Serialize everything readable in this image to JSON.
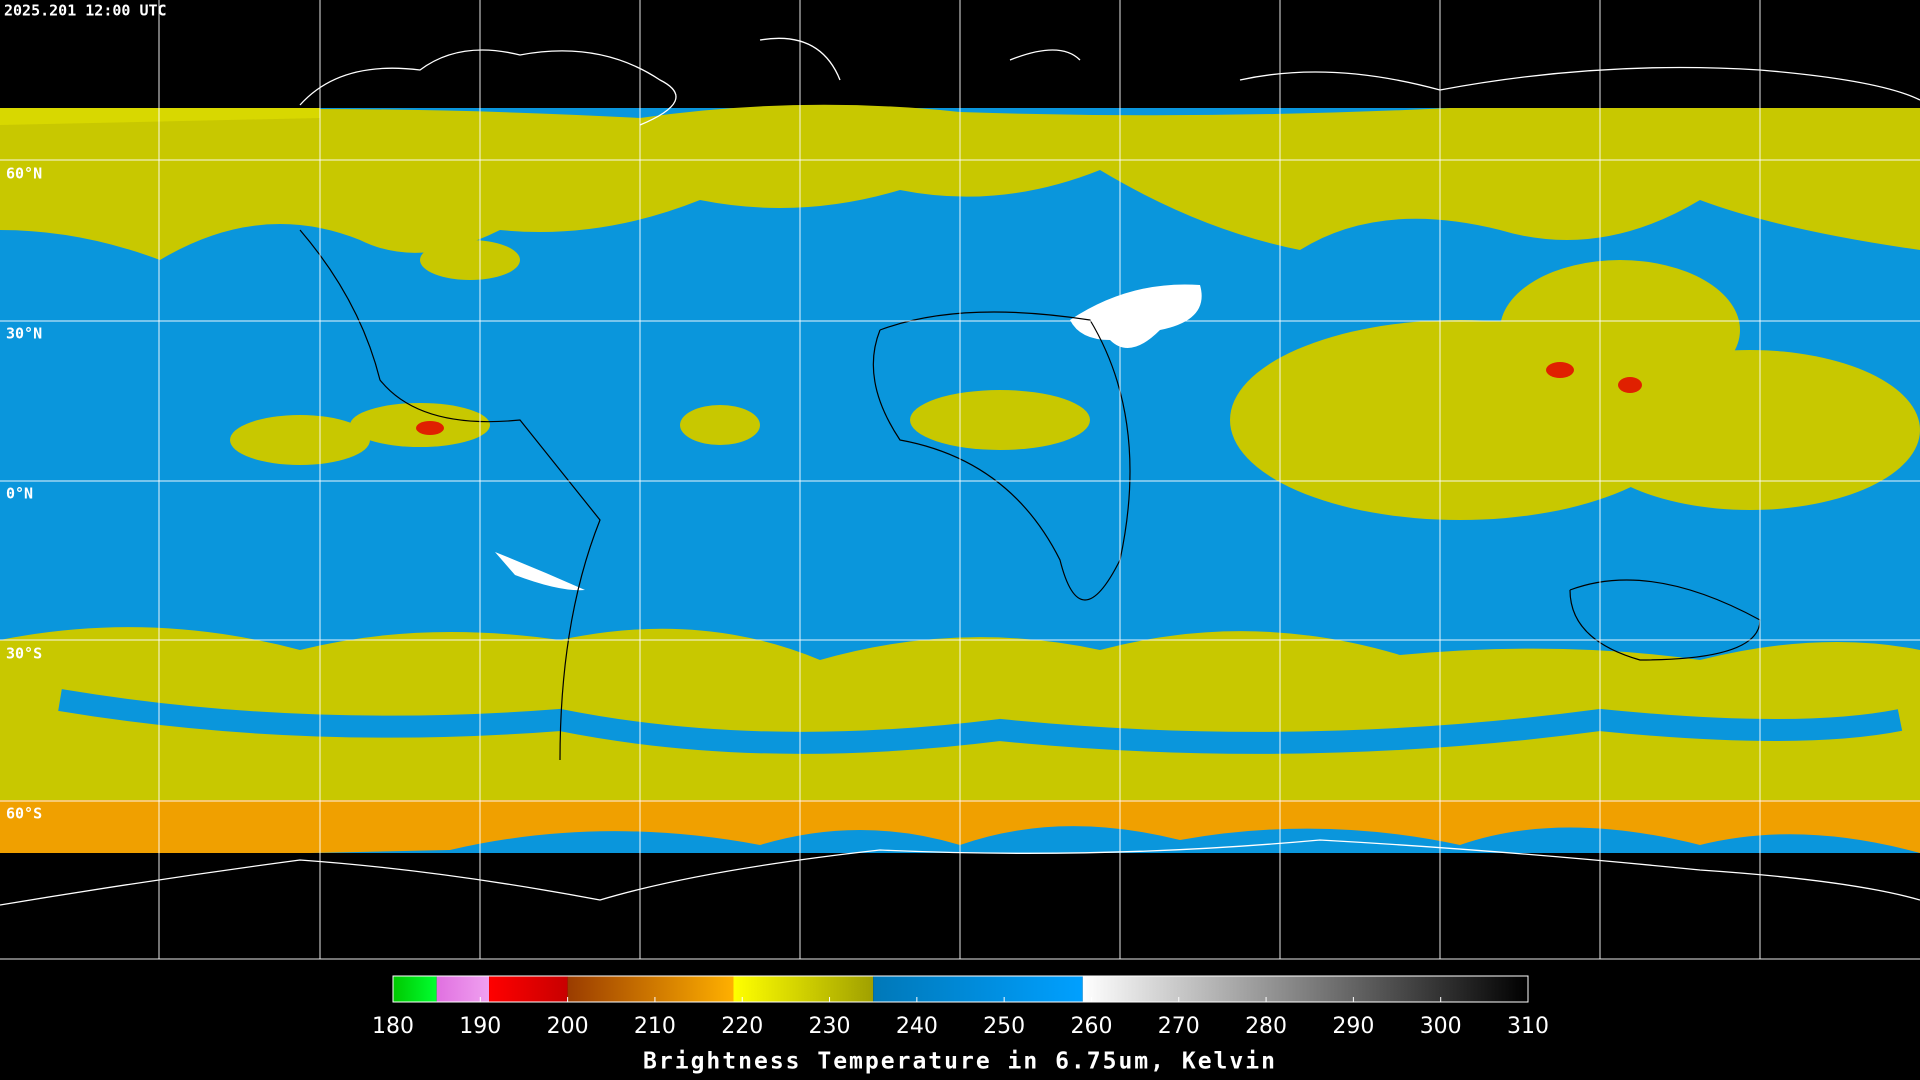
{
  "header": {
    "timestamp": "2025.201 12:00 UTC"
  },
  "map": {
    "latitude_labels": [
      "60°N",
      "30°N",
      "0°N",
      "30°S",
      "60°S"
    ]
  },
  "colorbar": {
    "title": "Brightness Temperature in 6.75um, Kelvin",
    "range": [
      180,
      310
    ],
    "ticks": [
      180,
      190,
      200,
      210,
      220,
      230,
      240,
      250,
      260,
      270,
      280,
      290,
      300,
      310
    ],
    "segments": [
      {
        "from": 180,
        "to": 185,
        "colors": [
          "#00c800",
          "#00ff30"
        ]
      },
      {
        "from": 185,
        "to": 191,
        "colors": [
          "#e070e0",
          "#f0a0f0"
        ]
      },
      {
        "from": 191,
        "to": 200,
        "colors": [
          "#ff0000",
          "#c80000"
        ]
      },
      {
        "from": 200,
        "to": 219,
        "colors": [
          "#9a3c00",
          "#ffb000"
        ]
      },
      {
        "from": 219,
        "to": 235,
        "colors": [
          "#ffff00",
          "#a0a000"
        ]
      },
      {
        "from": 235,
        "to": 259,
        "colors": [
          "#0078b8",
          "#00a0ff"
        ]
      },
      {
        "from": 259,
        "to": 310,
        "colors": [
          "#ffffff",
          "#000000"
        ]
      }
    ]
  }
}
